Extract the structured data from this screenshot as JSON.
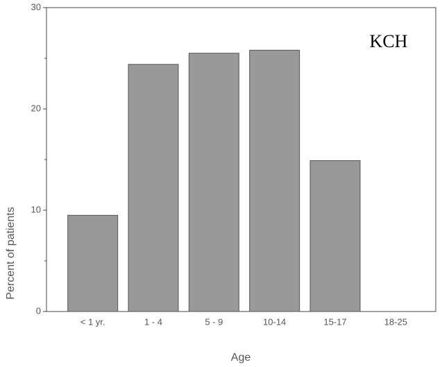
{
  "chart_data": {
    "type": "bar",
    "annotation": "KCH",
    "x_label": "Age",
    "y_label": "Percent of patients",
    "categories": [
      "< 1 yr.",
      "1 - 4",
      "5 - 9",
      "10-14",
      "15-17",
      "18-25"
    ],
    "values": [
      9.5,
      24.4,
      25.5,
      25.8,
      14.9,
      0
    ],
    "color": "#999999",
    "ylim": [
      0,
      30
    ],
    "yticks": [
      0,
      10,
      20,
      30
    ],
    "minor_yticks": [
      5,
      15,
      25
    ],
    "grid": false
  }
}
